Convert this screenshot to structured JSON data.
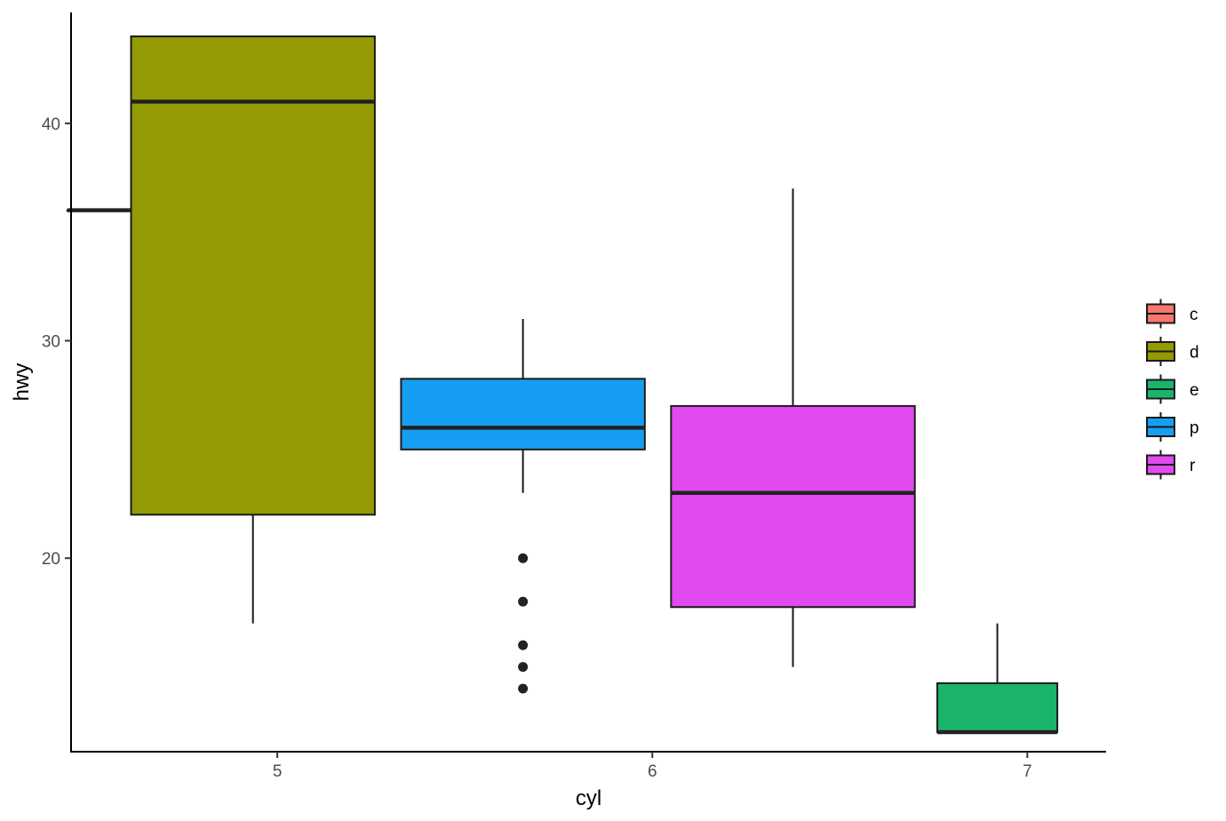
{
  "chart_data": {
    "type": "boxplot",
    "xlabel": "cyl",
    "ylabel": "hwy",
    "x_ticks": [
      5,
      6,
      7
    ],
    "y_ticks": [
      20,
      30,
      40
    ],
    "xlim": [
      4.45,
      7.21
    ],
    "ylim": [
      11.1,
      45.1
    ],
    "grid": false,
    "legend": {
      "position": "right",
      "entries": [
        {
          "label": "c",
          "color": "#F8766D"
        },
        {
          "label": "d",
          "color": "#939A03"
        },
        {
          "label": "e",
          "color": "#1BB46B"
        },
        {
          "label": "p",
          "color": "#169FF2"
        },
        {
          "label": "r",
          "color": "#E04AF0"
        }
      ]
    },
    "boxes": [
      {
        "group": "c",
        "x_min": 4.44,
        "x_max": 4.66,
        "lower_whisker": 36,
        "q1": 36,
        "median": 36,
        "q3": 36,
        "upper_whisker": 36,
        "outliers": [],
        "color": "#F8766D"
      },
      {
        "group": "d",
        "x_min": 4.61,
        "x_max": 5.26,
        "lower_whisker": 17,
        "q1": 22,
        "median": 41,
        "q3": 44,
        "upper_whisker": 44,
        "outliers": [],
        "color": "#939A03"
      },
      {
        "group": "p",
        "x_min": 5.33,
        "x_max": 5.98,
        "lower_whisker": 23,
        "q1": 25,
        "median": 26,
        "q3": 28.25,
        "upper_whisker": 31,
        "outliers": [
          20,
          18,
          16,
          15,
          14
        ],
        "color": "#169FF2"
      },
      {
        "group": "r",
        "x_min": 6.05,
        "x_max": 6.7,
        "lower_whisker": 15,
        "q1": 17.75,
        "median": 23,
        "q3": 27,
        "upper_whisker": 37,
        "outliers": [],
        "color": "#E04AF0"
      },
      {
        "group": "e",
        "x_min": 6.76,
        "x_max": 7.08,
        "lower_whisker": 12,
        "q1": 12,
        "median": 12,
        "q3": 14.25,
        "upper_whisker": 17,
        "outliers": [],
        "color": "#1BB46B"
      }
    ]
  }
}
